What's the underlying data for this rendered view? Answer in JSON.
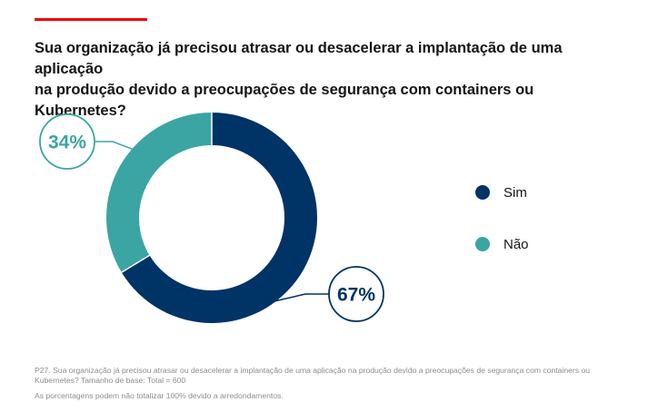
{
  "question": {
    "line1": "Sua organização já precisou atrasar ou desacelerar a implantação de uma aplicação",
    "line2": "na produção devido a preocupações de segurança com containers ou Kubernetes?"
  },
  "colors": {
    "accent": "#ee0000",
    "sim": "#003366",
    "nao": "#3ba5a3"
  },
  "chart_data": {
    "type": "pie",
    "variant": "donut",
    "categories": [
      "Sim",
      "Não"
    ],
    "values": [
      67,
      34
    ],
    "labels": [
      "67%",
      "34%"
    ],
    "colors": [
      "#003366",
      "#3ba5a3"
    ],
    "legend_position": "right"
  },
  "legend": [
    {
      "label": "Sim",
      "color": "#003366"
    },
    {
      "label": "Não",
      "color": "#3ba5a3"
    }
  ],
  "footnote": {
    "line1": "P27. Sua organização já precisou atrasar ou desacelerar a implantação de uma aplicação na produção devido a preocupações de segurança com containers ou Kubernetes? Tamanho de base: Total = 600",
    "line2": "As porcentagens podem não totalizar 100% devido a arredondamentos."
  }
}
